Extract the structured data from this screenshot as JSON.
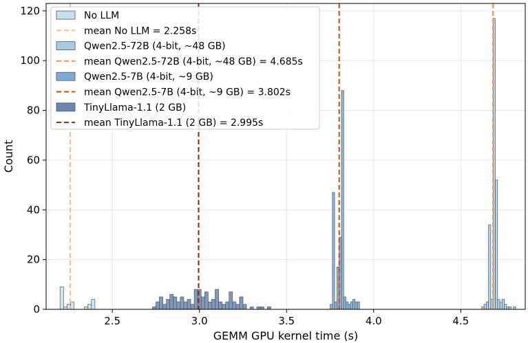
{
  "chart_data": {
    "type": "histogram",
    "xlabel": "GEMM GPU kernel time (s)",
    "ylabel": "Count",
    "xlim": [
      2.12,
      4.87
    ],
    "ylim": [
      0,
      123
    ],
    "xticks": [
      2.5,
      3.0,
      3.5,
      4.0,
      4.5
    ],
    "xtick_labels": [
      "2.5",
      "3.0",
      "3.5",
      "4.0",
      "4.5"
    ],
    "yticks": [
      0,
      20,
      40,
      60,
      80,
      100,
      120
    ],
    "ytick_labels": [
      "0",
      "20",
      "40",
      "60",
      "80",
      "100",
      "120"
    ],
    "grid": true,
    "legend_position": "top-left",
    "series": [
      {
        "name": "No LLM",
        "mean_label": "mean No LLM = 2.258s",
        "mean": 2.258,
        "bar_color": "#c9e0ec",
        "line_color": "#fdbb84",
        "bar_width": 0.02,
        "bins": [
          [
            2.2,
            9
          ],
          [
            2.22,
            1
          ],
          [
            2.24,
            2
          ],
          [
            2.26,
            3
          ],
          [
            2.34,
            1
          ],
          [
            2.36,
            2
          ],
          [
            2.38,
            4
          ]
        ]
      },
      {
        "name": "Qwen2.5-72B (4-bit, ~48 GB)",
        "mean_label": "mean Qwen2.5-72B (4-bit, ~48 GB) = 4.685s",
        "mean": 4.685,
        "bar_color": "#a8cbe2",
        "line_color": "#fd8d3c",
        "bar_width": 0.013,
        "bins": [
          [
            4.62,
            1
          ],
          [
            4.633,
            2
          ],
          [
            4.646,
            3
          ],
          [
            4.659,
            34
          ],
          [
            4.672,
            4
          ],
          [
            4.685,
            117
          ],
          [
            4.698,
            52
          ],
          [
            4.711,
            4
          ],
          [
            4.724,
            3
          ],
          [
            4.737,
            4
          ],
          [
            4.75,
            2
          ],
          [
            4.763,
            1
          ],
          [
            4.776,
            1
          ],
          [
            4.802,
            1
          ]
        ]
      },
      {
        "name": "Qwen2.5-7B (4-bit, ~9 GB)",
        "mean_label": "mean Qwen2.5-7B (4-bit, ~9 GB) = 3.802s",
        "mean": 3.802,
        "bar_color": "#7fa9cf",
        "line_color": "#d94801",
        "bar_width": 0.013,
        "bins": [
          [
            3.75,
            2
          ],
          [
            3.763,
            47
          ],
          [
            3.776,
            3
          ],
          [
            3.789,
            17
          ],
          [
            3.802,
            29
          ],
          [
            3.815,
            88
          ],
          [
            3.828,
            5
          ],
          [
            3.841,
            3
          ],
          [
            3.854,
            2
          ],
          [
            3.867,
            3
          ],
          [
            3.88,
            4
          ],
          [
            3.893,
            3
          ],
          [
            3.906,
            3
          ]
        ]
      },
      {
        "name": "TinyLlama-1.1 (2 GB)",
        "mean_label": "mean TinyLlama-1.1 (2 GB) = 2.995s",
        "mean": 2.995,
        "bar_color": "#6b86ad",
        "line_color": "#8c2d04",
        "bar_width": 0.02,
        "bins": [
          [
            2.73,
            1
          ],
          [
            2.75,
            3
          ],
          [
            2.77,
            5
          ],
          [
            2.79,
            2
          ],
          [
            2.81,
            4
          ],
          [
            2.83,
            6
          ],
          [
            2.85,
            5
          ],
          [
            2.87,
            3
          ],
          [
            2.89,
            5
          ],
          [
            2.91,
            3
          ],
          [
            2.93,
            4
          ],
          [
            2.95,
            2
          ],
          [
            2.97,
            8
          ],
          [
            2.99,
            8
          ],
          [
            3.01,
            5
          ],
          [
            3.03,
            7
          ],
          [
            3.05,
            3
          ],
          [
            3.07,
            4
          ],
          [
            3.09,
            8
          ],
          [
            3.11,
            3
          ],
          [
            3.13,
            2
          ],
          [
            3.15,
            3
          ],
          [
            3.17,
            7
          ],
          [
            3.19,
            3
          ],
          [
            3.21,
            2
          ],
          [
            3.23,
            5
          ],
          [
            3.25,
            2
          ],
          [
            3.29,
            1
          ],
          [
            3.33,
            1
          ],
          [
            3.35,
            1
          ],
          [
            3.39,
            1
          ]
        ]
      }
    ]
  }
}
